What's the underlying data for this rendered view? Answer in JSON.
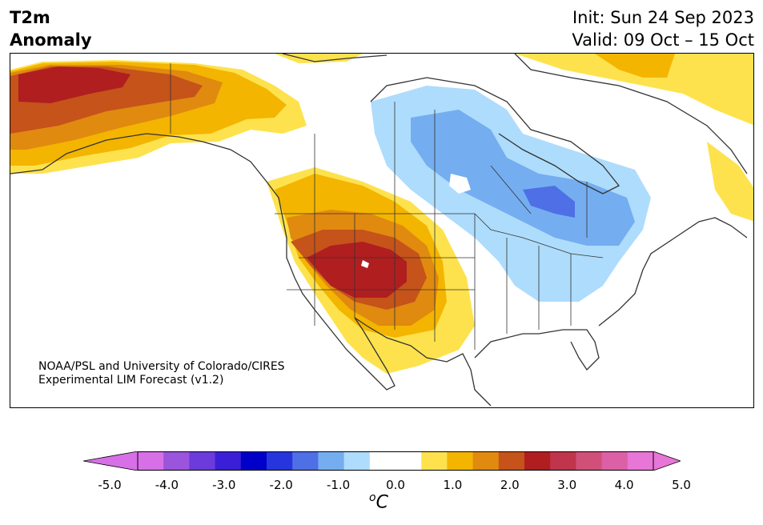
{
  "title": {
    "line1": "T2m",
    "line2": "Anomaly"
  },
  "dates": {
    "init": "Init: Sun 24 Sep 2023",
    "valid": "Valid: 09 Oct – 15 Oct"
  },
  "credit": {
    "line1": "NOAA/PSL and University of Colorado/CIRES",
    "line2": "Experimental LIM Forecast (v1.2)"
  },
  "colorbar": {
    "unit_base": "C",
    "unit_sup": "o",
    "tick_labels": [
      "-5.0",
      "-4.0",
      "-3.0",
      "-2.0",
      "-1.0",
      "0.0",
      "1.0",
      "2.0",
      "3.0",
      "4.0",
      "5.0"
    ],
    "colors": [
      "#d770e6",
      "#9b54dc",
      "#6b3bdc",
      "#3b1fd6",
      "#0000c8",
      "#2636dc",
      "#4f6fe6",
      "#74aef0",
      "#aedcfc",
      "#ffffff",
      "#ffffff",
      "#fde24e",
      "#f3b500",
      "#e08a10",
      "#c5531a",
      "#b01e20",
      "#c0344c",
      "#d0507a",
      "#dc60a6",
      "#e876d6"
    ],
    "extend_colors": {
      "low": "#d770e6",
      "high": "#e876d6"
    }
  },
  "map": {
    "land_color": "#ffffff",
    "anomaly_regions": [
      {
        "name": "alaska-warm",
        "level": 1.0
      },
      {
        "name": "southwest-warm",
        "level": 3.0
      },
      {
        "name": "central-canada-cool",
        "level": -1.0
      },
      {
        "name": "hudson-bay-cool",
        "level": -2.0
      },
      {
        "name": "greenland-warm",
        "level": 1.0
      }
    ]
  }
}
